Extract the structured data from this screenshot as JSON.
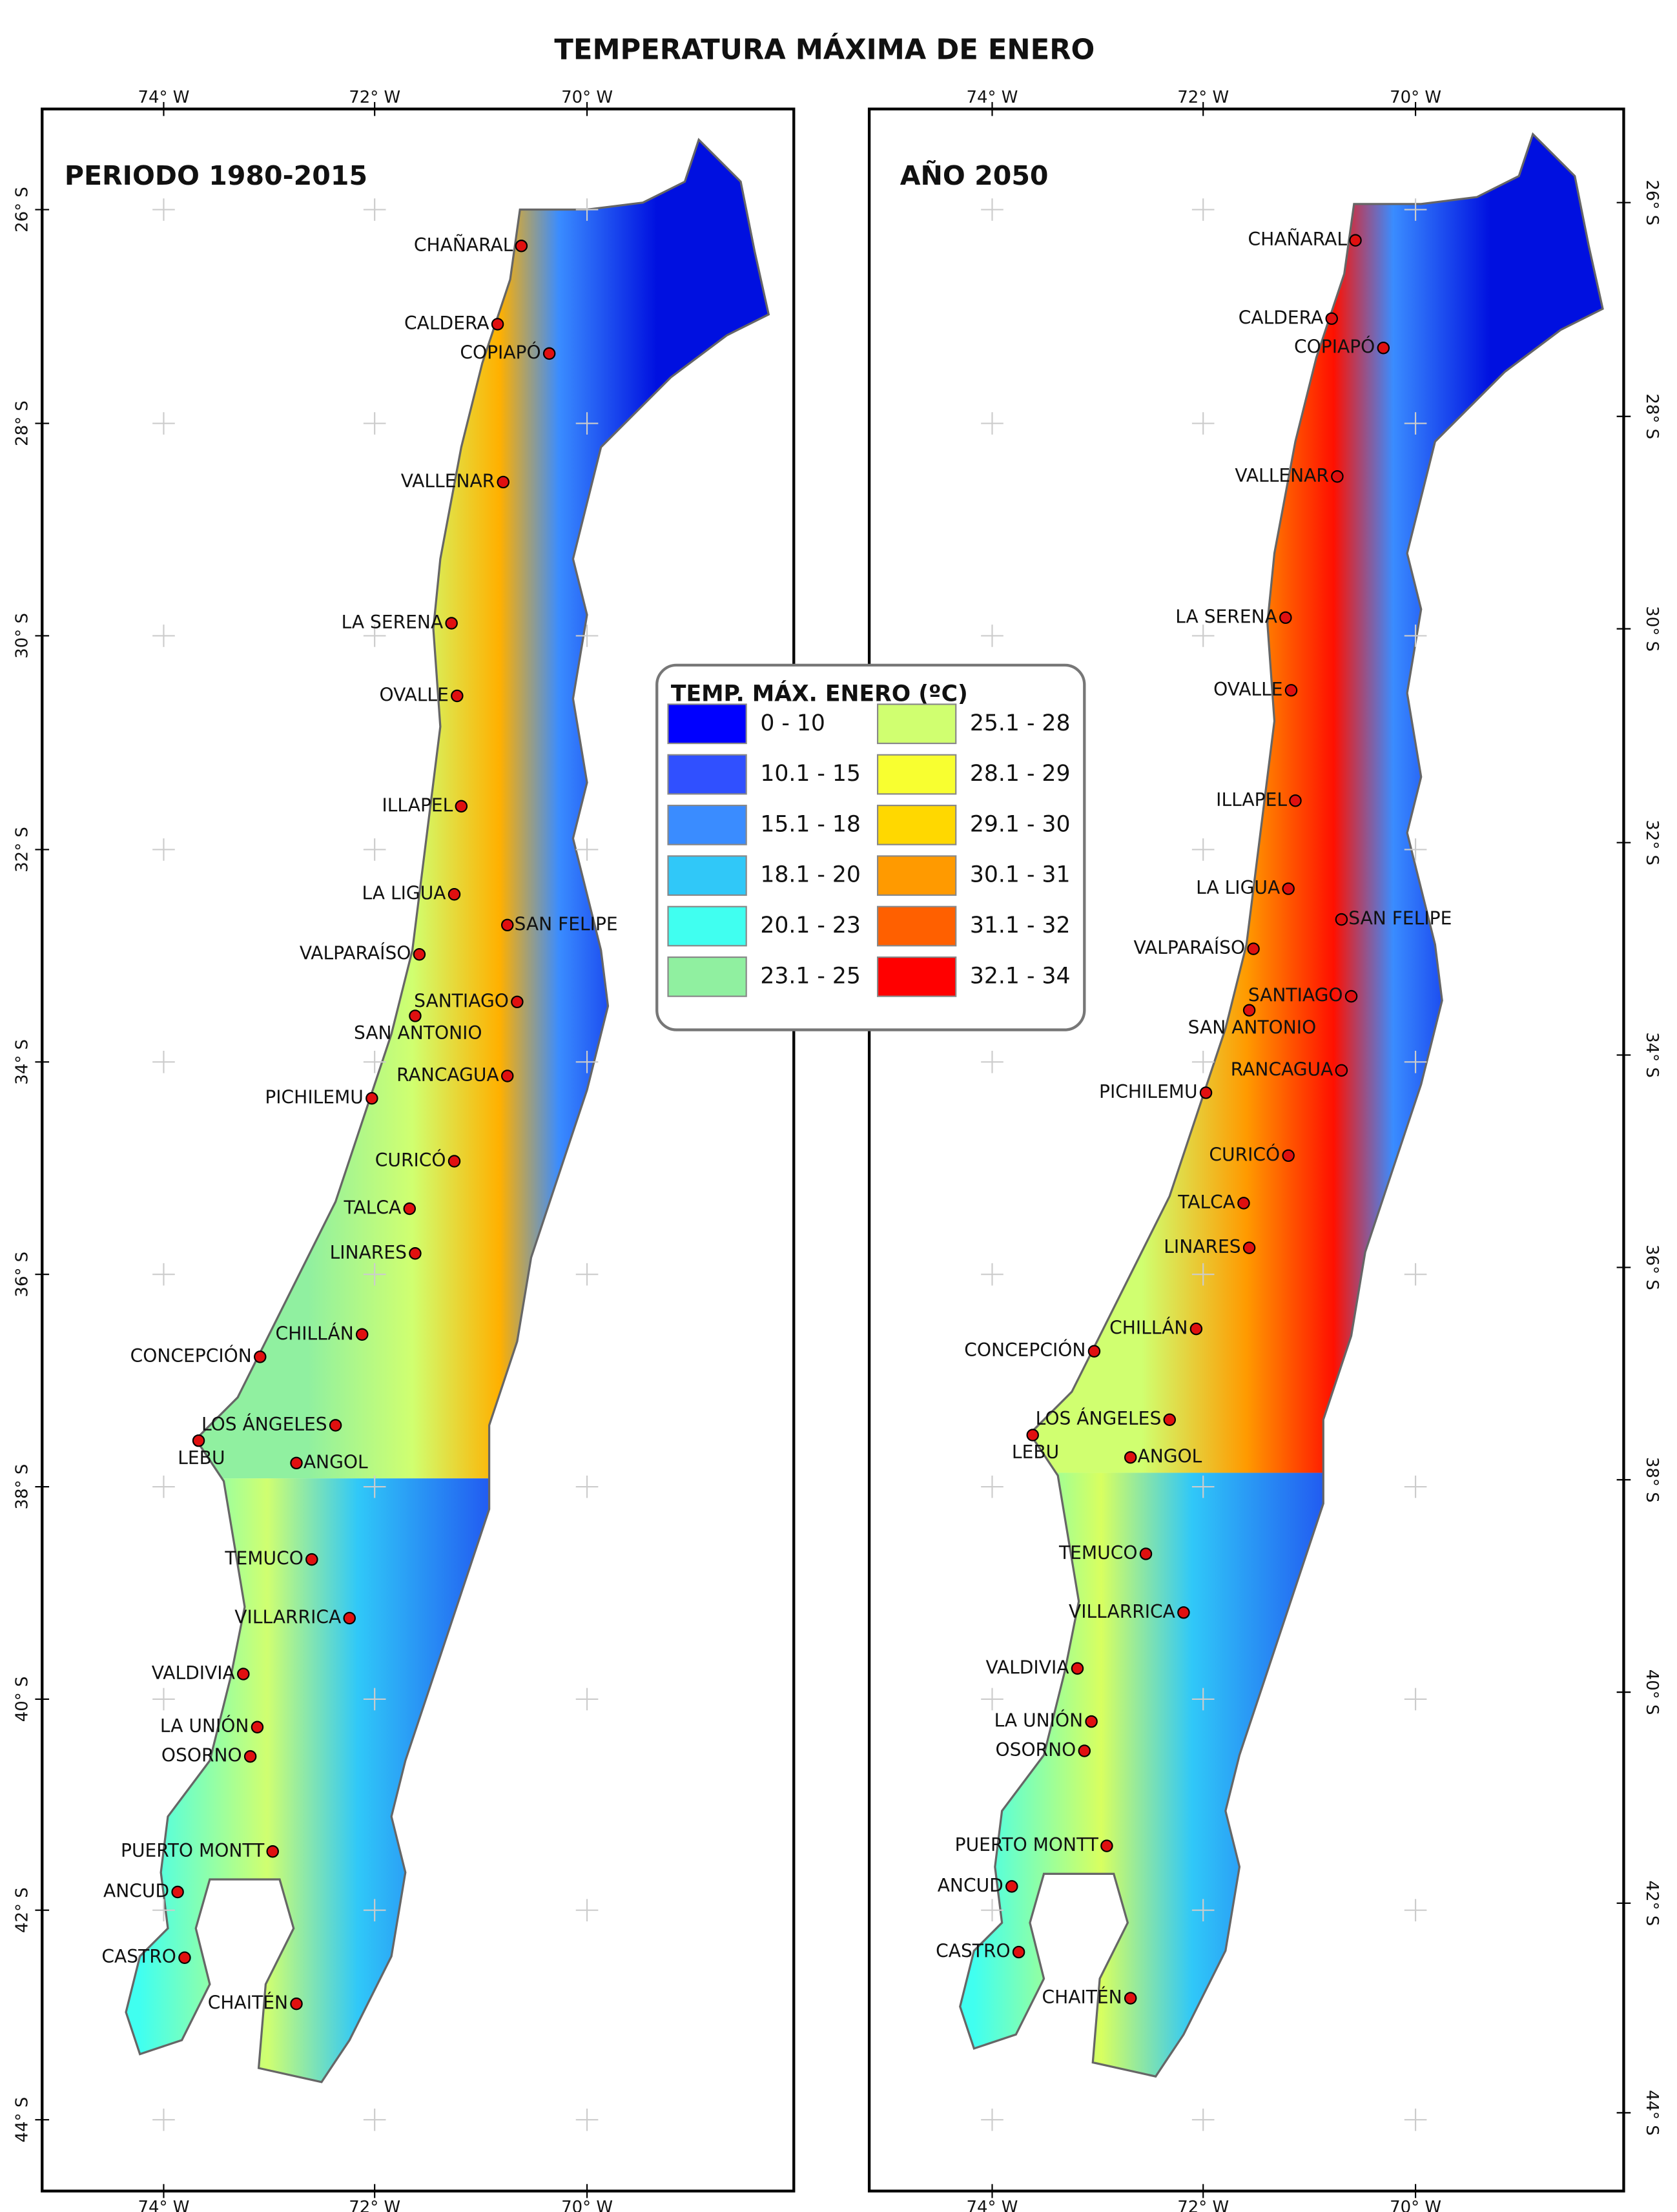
{
  "title": "TEMPERATURA MÁXIMA DE ENERO",
  "panels": [
    {
      "title": "PERIODO 1980-2015",
      "cities": [
        "CHAÑARAL",
        "CALDERA",
        "COPIAPÓ",
        "VALLENAR",
        "LA SERENA",
        "OVALLE",
        "ILLAPEL",
        "LA LIGUA",
        "SAN FELIPE",
        "VALPARAÍSO",
        "SANTIAGO",
        "SAN ANTONIO",
        "RANCAGUA",
        "PICHILEMU",
        "CURICÓ",
        "TALCA",
        "LINARES",
        "CHILLÁN",
        "CONCEPCIÓN",
        "LOS ÁNGELES",
        "LEBU",
        "ANGOL",
        "TEMUCO",
        "VILLARRICA",
        "VALDIVIA",
        "LA UNIÓN",
        "OSORNO",
        "PUERTO MONTT",
        "ANCUD",
        "CASTRO",
        "CHAITÉN"
      ]
    },
    {
      "title": "AÑO 2050",
      "cities": [
        "CHAÑARAL",
        "CALDERA",
        "COPIAPÓ",
        "VALLENAR",
        "LA SERENA",
        "OVALLE",
        "ILLAPEL",
        "LA LIGUA",
        "SAN FELIPE",
        "VALPARAÍSO",
        "SANTIAGO",
        "SAN ANTONIO",
        "RANCAGUA",
        "PICHILEMU",
        "CURICÓ",
        "TALCA",
        "LINARES",
        "CHILLÁN",
        "CONCEPCIÓN",
        "LOS ÁNGELES",
        "LEBU",
        "ANGOL",
        "TEMUCO",
        "VILLARRICA",
        "VALDIVIA",
        "LA UNIÓN",
        "OSORNO",
        "PUERTO MONTT",
        "ANCUD",
        "CASTRO",
        "CHAITÉN"
      ]
    }
  ],
  "lon_labels": [
    "74° W",
    "72° W",
    "70° W"
  ],
  "lat_labels": [
    "26° S",
    "28° S",
    "30° S",
    "32° S",
    "34° S",
    "36° S",
    "38° S",
    "40° S",
    "42° S",
    "44° S"
  ],
  "legend": {
    "title": "TEMP. MÁX. ENERO (ºC)",
    "items": [
      {
        "label": "0 - 10",
        "color": "#0000ff"
      },
      {
        "label": "10.1 - 15",
        "color": "#3050ff"
      },
      {
        "label": "15.1 - 18",
        "color": "#3a8cff"
      },
      {
        "label": "18.1 - 20",
        "color": "#30c8f8"
      },
      {
        "label": "20.1 - 23",
        "color": "#40fff0"
      },
      {
        "label": "23.1 - 25",
        "color": "#90f0a0"
      },
      {
        "label": "25.1 - 28",
        "color": "#d0ff70"
      },
      {
        "label": "28.1 - 29",
        "color": "#f8ff30"
      },
      {
        "label": "29.1 - 30",
        "color": "#ffd800"
      },
      {
        "label": "30.1 - 31",
        "color": "#ff9a00"
      },
      {
        "label": "31.1 - 32",
        "color": "#ff6000"
      },
      {
        "label": "32.1 - 34",
        "color": "#ff0000"
      }
    ]
  }
}
